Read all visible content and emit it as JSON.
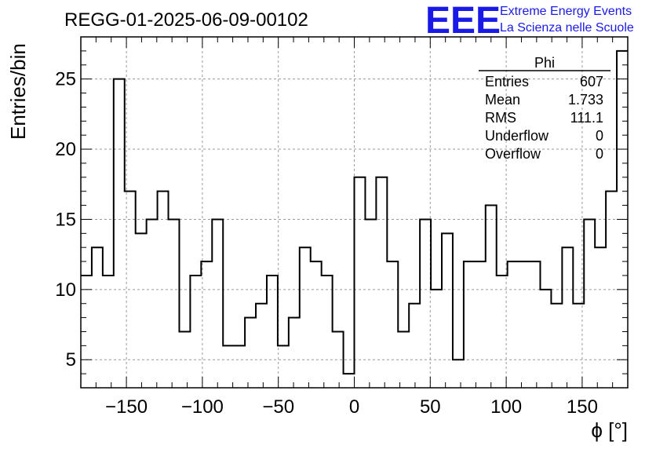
{
  "chart_data": {
    "type": "histogram",
    "title": "REGG-01-2025-06-09-00102",
    "xlabel": "ϕ [°]",
    "ylabel": "Entries/bin",
    "xlim": [
      -180,
      180
    ],
    "ylim": [
      3,
      28
    ],
    "x_ticks": [
      -150,
      -100,
      -50,
      0,
      50,
      100,
      150
    ],
    "y_ticks": [
      5,
      10,
      15,
      20,
      25
    ],
    "grid": true,
    "bin_width": 7.2,
    "values": [
      11,
      13,
      11,
      25,
      17,
      14,
      15,
      17,
      15,
      7,
      11,
      12,
      15,
      6,
      6,
      8,
      9,
      11,
      6,
      8,
      13,
      12,
      11,
      7,
      4,
      18,
      15,
      18,
      12,
      7,
      9,
      15,
      10,
      14,
      5,
      12,
      12,
      16,
      11,
      12,
      12,
      12,
      10,
      9,
      13,
      9,
      15,
      13,
      17,
      27
    ]
  },
  "stats_box": {
    "title": "Phi",
    "rows": [
      {
        "label": "Entries",
        "value": "607"
      },
      {
        "label": "Mean",
        "value": "1.733"
      },
      {
        "label": "RMS",
        "value": "111.1"
      },
      {
        "label": "Underflow",
        "value": "0"
      },
      {
        "label": "Overflow",
        "value": "0"
      }
    ]
  },
  "logo": {
    "mark": "EEE",
    "line1": "Extreme Energy Events",
    "line2": "La Scienza nelle Scuole",
    "color": "#1a1ae6"
  }
}
